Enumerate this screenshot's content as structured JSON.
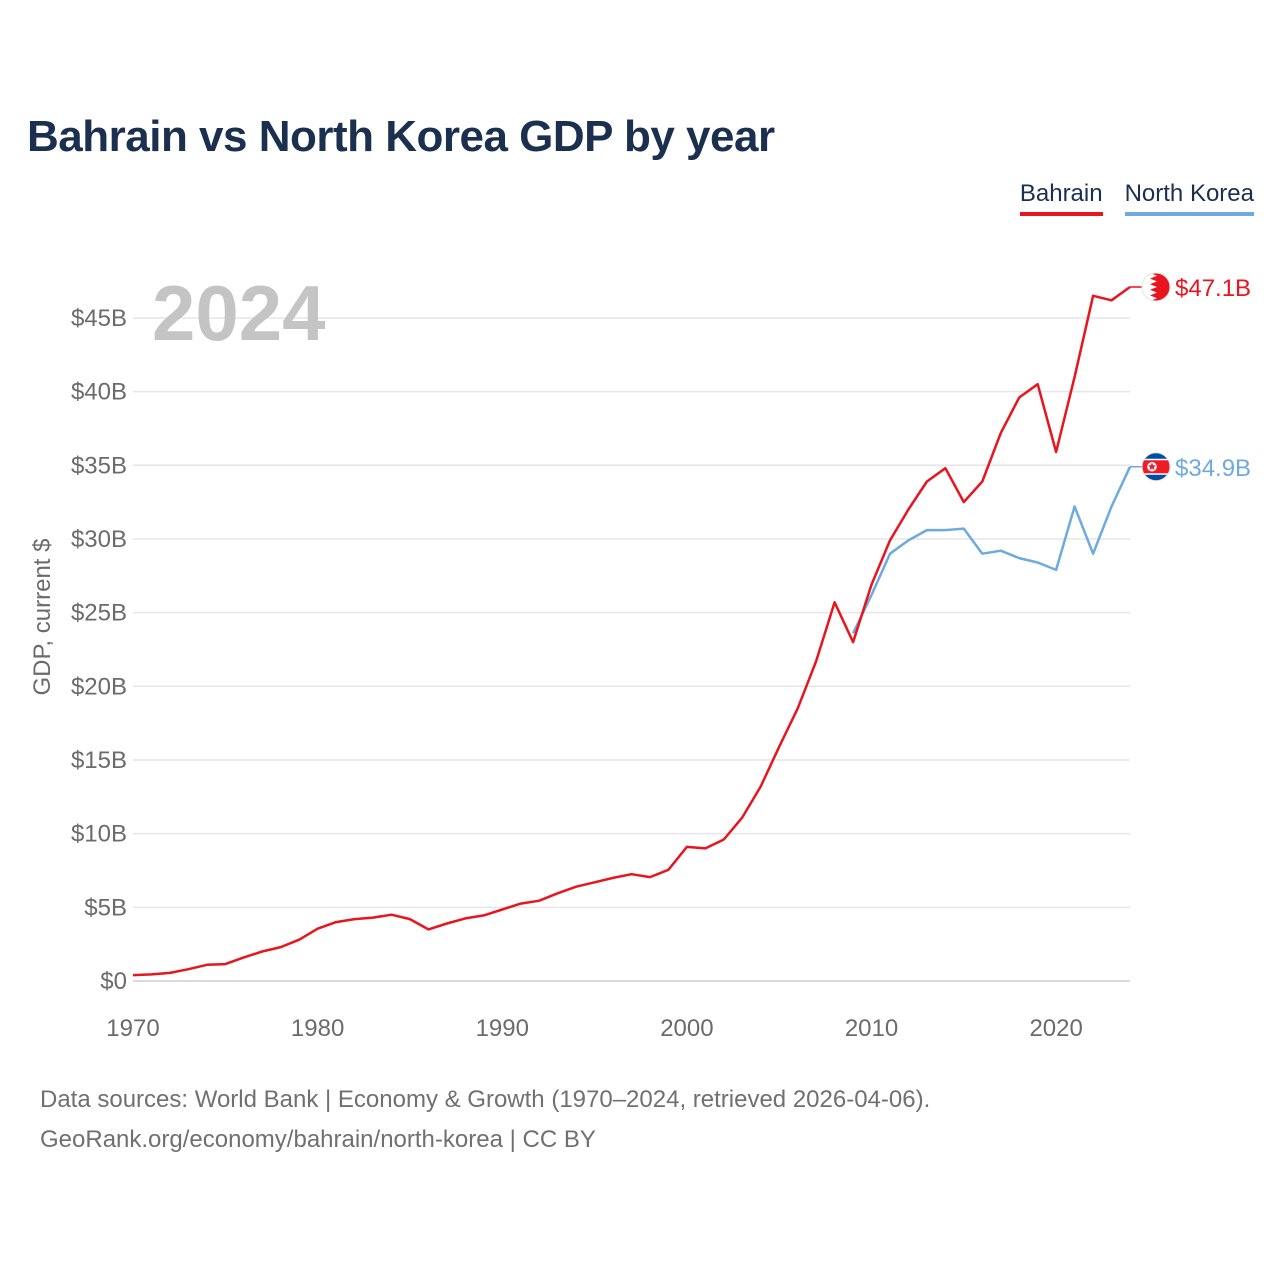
{
  "header": {
    "title": "Bahrain vs North Korea GDP by year"
  },
  "legend": {
    "bahrain": "Bahrain",
    "north_korea": "North Korea"
  },
  "colors": {
    "bahrain": "#e8141e",
    "north_korea": "#6ea9e0",
    "title": "#1b2f4f",
    "axis_text": "#6b6b6b",
    "year_watermark": "#c4c4c4",
    "grid": "#e6e6e6"
  },
  "year_label": "2024",
  "footer": {
    "line1": "Data sources: World Bank | Economy & Growth (1970–2024, retrieved 2026-04-06).",
    "line2": "GeoRank.org/economy/bahrain/north-korea | CC BY"
  },
  "chart_data": {
    "type": "line",
    "title": "Bahrain vs North Korea GDP by year",
    "xlabel": "",
    "ylabel": "GDP, current $",
    "xlim": [
      1970,
      2024
    ],
    "ylim": [
      0,
      47.1
    ],
    "y_unit": "billion USD",
    "x_ticks": [
      1970,
      1980,
      1990,
      2000,
      2010,
      2020
    ],
    "y_ticks": [
      0,
      5,
      10,
      15,
      20,
      25,
      30,
      35,
      40,
      45
    ],
    "y_tick_labels": [
      "$0",
      "$5B",
      "$10B",
      "$15B",
      "$20B",
      "$25B",
      "$30B",
      "$35B",
      "$40B",
      "$45B"
    ],
    "grid": true,
    "legend_position": "top-right",
    "series": [
      {
        "name": "Bahrain",
        "end_label": "$47.1B",
        "x": [
          1970,
          1971,
          1972,
          1973,
          1974,
          1975,
          1976,
          1977,
          1978,
          1979,
          1980,
          1981,
          1982,
          1983,
          1984,
          1985,
          1986,
          1987,
          1988,
          1989,
          1990,
          1991,
          1992,
          1993,
          1994,
          1995,
          1996,
          1997,
          1998,
          1999,
          2000,
          2001,
          2002,
          2003,
          2004,
          2005,
          2006,
          2007,
          2008,
          2009,
          2010,
          2011,
          2012,
          2013,
          2014,
          2015,
          2016,
          2017,
          2018,
          2019,
          2020,
          2021,
          2022,
          2023,
          2024
        ],
        "values": [
          0.4,
          0.45,
          0.55,
          0.8,
          1.1,
          1.15,
          1.6,
          2.0,
          2.3,
          2.8,
          3.55,
          4.0,
          4.2,
          4.3,
          4.5,
          4.2,
          3.5,
          3.9,
          4.25,
          4.45,
          4.85,
          5.25,
          5.45,
          5.95,
          6.4,
          6.7,
          7.0,
          7.25,
          7.05,
          7.55,
          9.1,
          9.0,
          9.6,
          11.1,
          13.2,
          15.9,
          18.5,
          21.7,
          25.7,
          23.0,
          26.9,
          29.9,
          32.0,
          33.9,
          34.8,
          32.5,
          33.9,
          37.2,
          39.6,
          40.5,
          35.9,
          41.0,
          46.5,
          46.2,
          47.1
        ]
      },
      {
        "name": "North Korea",
        "end_label": "$34.9B",
        "x": [
          2009,
          2010,
          2011,
          2012,
          2013,
          2014,
          2015,
          2016,
          2017,
          2018,
          2019,
          2020,
          2021,
          2022,
          2023,
          2024
        ],
        "values": [
          23.6,
          26.2,
          29.0,
          29.9,
          30.6,
          30.6,
          30.7,
          29.0,
          29.2,
          28.7,
          28.4,
          27.9,
          32.2,
          29.0,
          32.2,
          34.9
        ]
      }
    ]
  }
}
